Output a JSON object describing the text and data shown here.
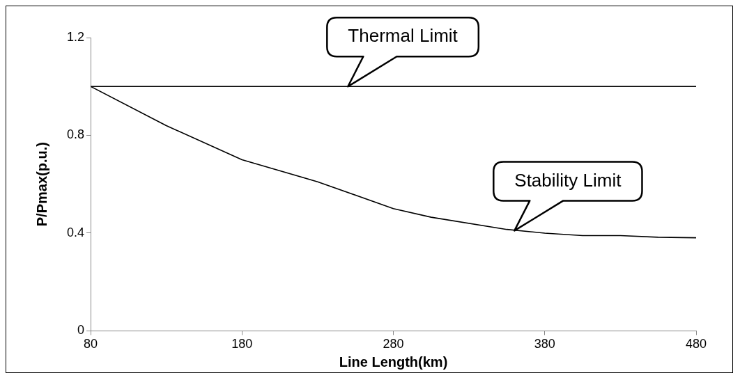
{
  "chart_data": {
    "type": "line",
    "xlabel": "Line Length(km)",
    "ylabel": "P/Pmax(p.u.)",
    "x": [
      80,
      130,
      180,
      230,
      280,
      305,
      355,
      380,
      405,
      430,
      455,
      480
    ],
    "series": [
      {
        "color": "#000000",
        "values": [
          1.0,
          1.0,
          1.0,
          1.0,
          1.0,
          1.0,
          1.0,
          1.0,
          1.0,
          1.0,
          1.0,
          1.0
        ]
      },
      {
        "color": "#000000",
        "values": [
          1.0,
          0.84,
          0.7,
          0.61,
          0.5,
          0.465,
          0.415,
          0.4,
          0.39,
          0.39,
          0.383,
          0.381
        ]
      }
    ],
    "xlim": [
      80,
      480
    ],
    "xticks": [
      80,
      180,
      280,
      380,
      480
    ],
    "ylim": [
      0,
      1.2
    ],
    "yticks": [
      0,
      0.4,
      0.8,
      1.2
    ],
    "grid": false,
    "legend": false,
    "marker": "none",
    "line_style": "solid",
    "annotations": [
      {
        "text": "Thermal Limit",
        "x": 250,
        "y": 1.0
      },
      {
        "text": "Stability Limit",
        "x": 360,
        "y": 0.41
      }
    ]
  }
}
